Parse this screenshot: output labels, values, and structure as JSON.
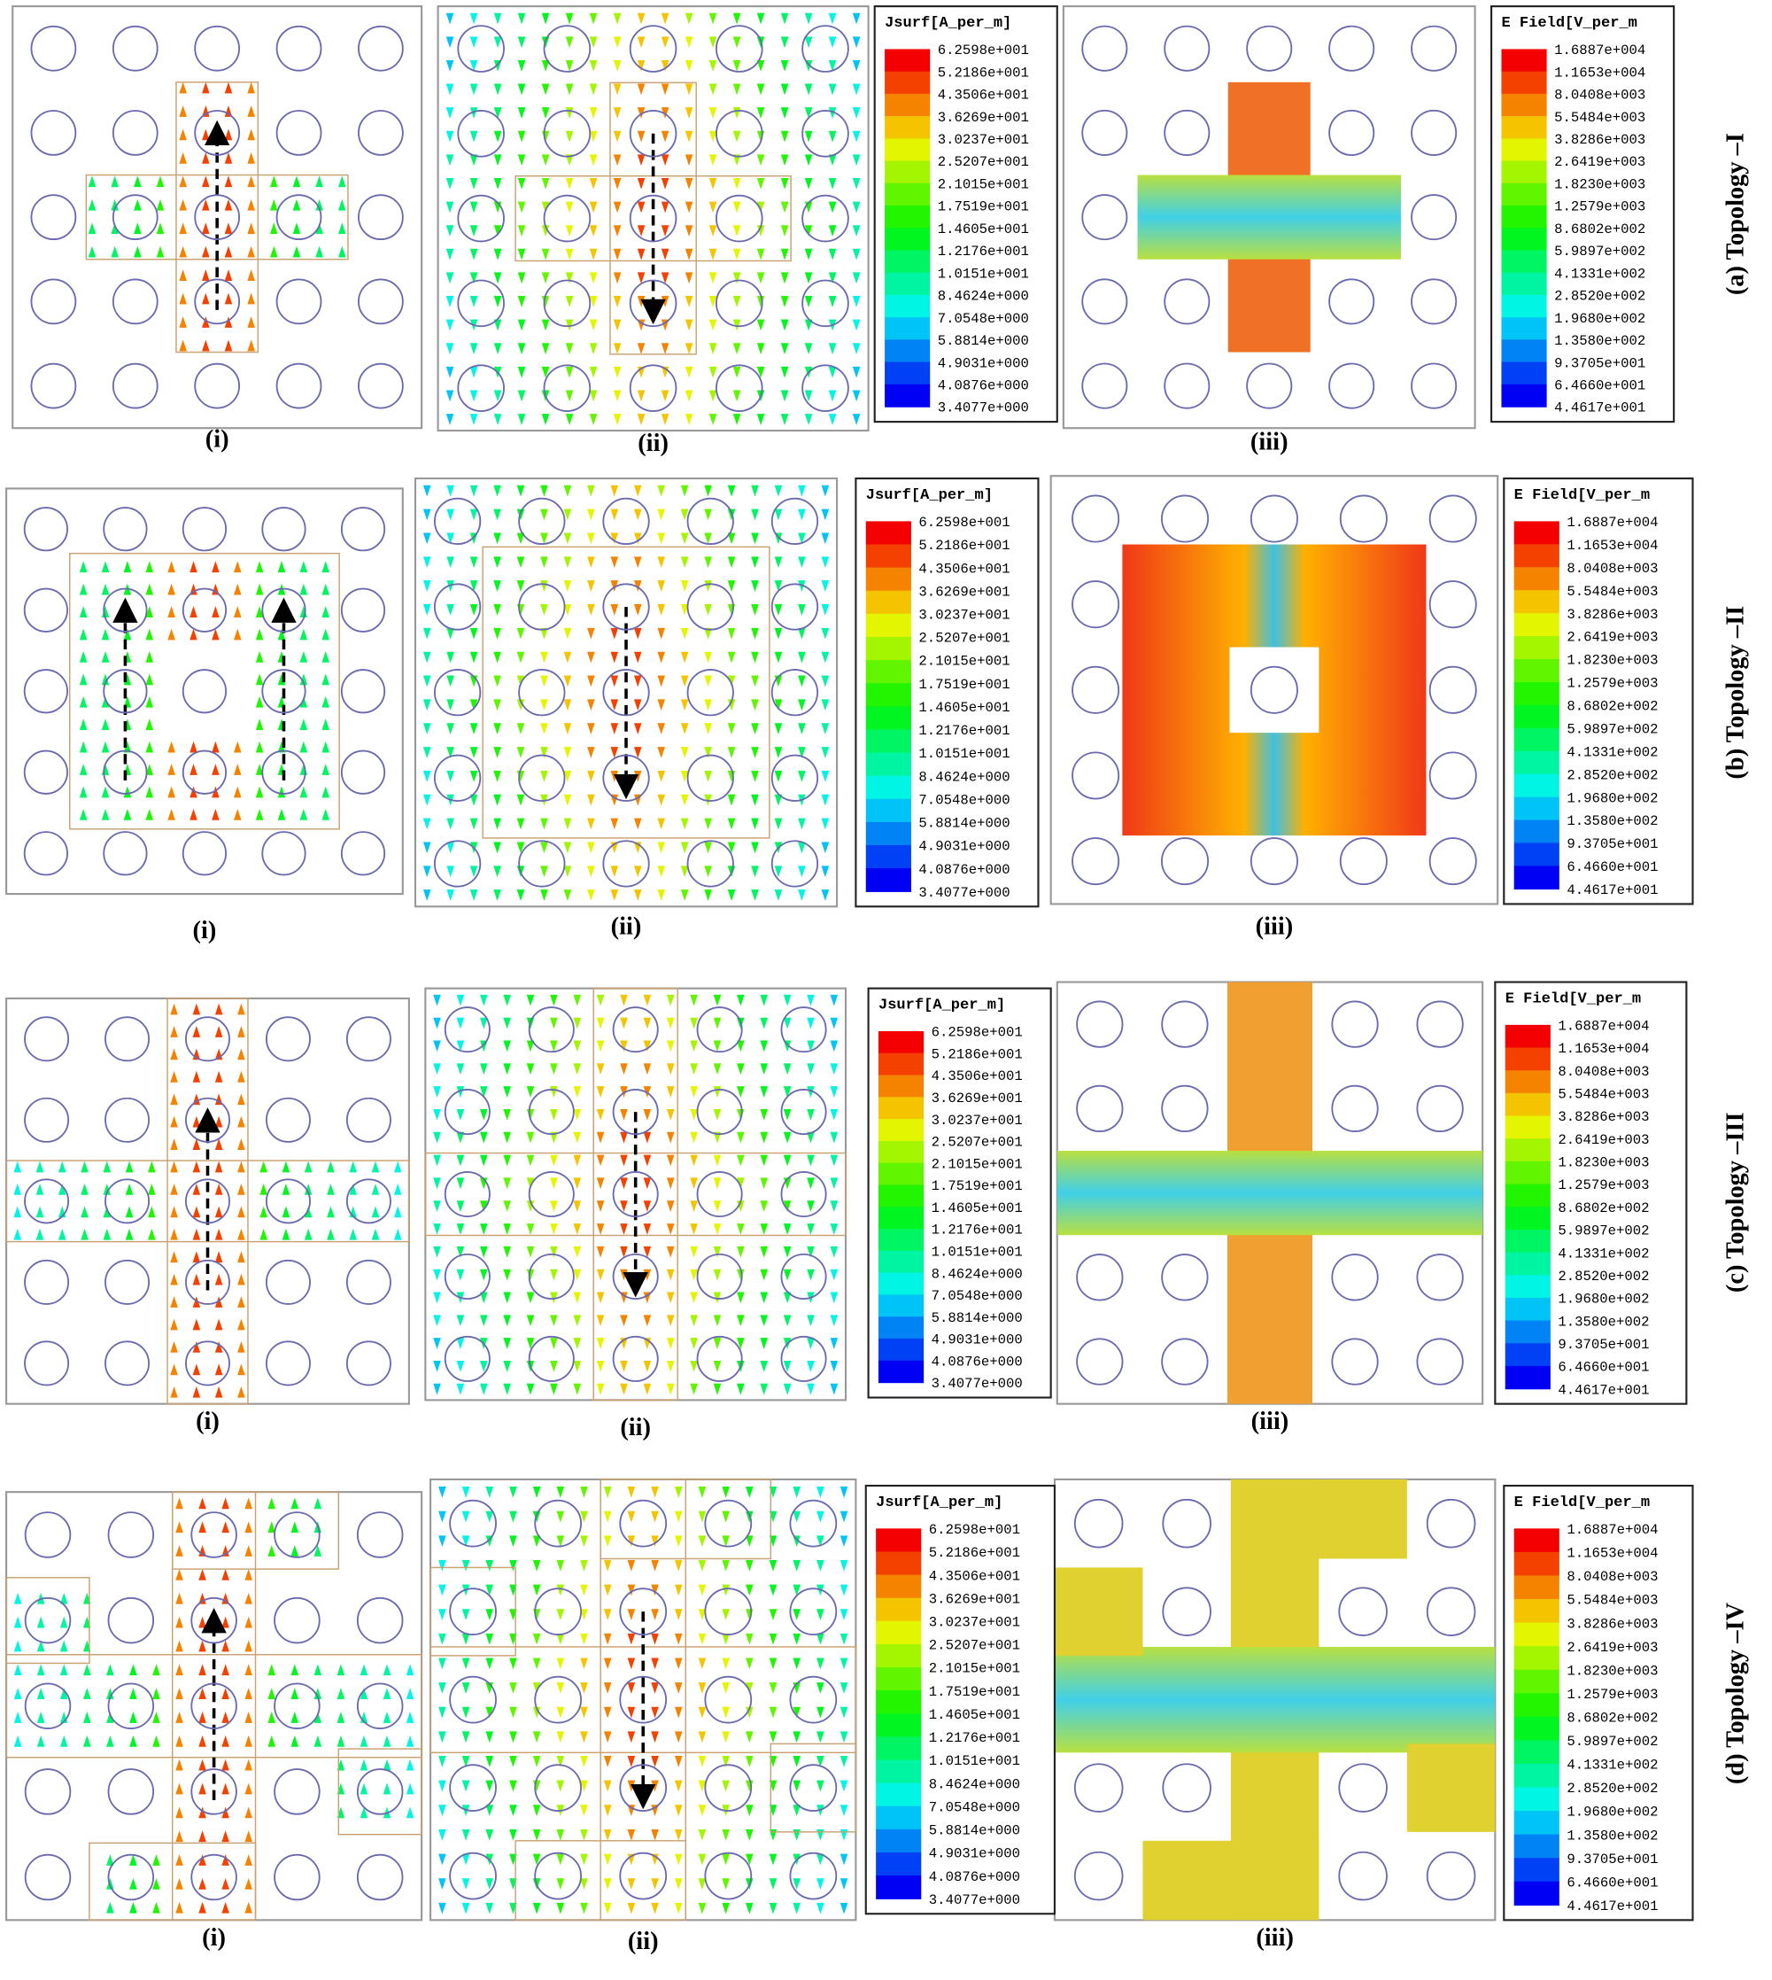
{
  "legends": {
    "jsurf": {
      "title": "Jsurf[A_per_m]",
      "labels": [
        "6.2598e+001",
        "5.2186e+001",
        "4.3506e+001",
        "3.6269e+001",
        "3.0237e+001",
        "2.5207e+001",
        "2.1015e+001",
        "1.7519e+001",
        "1.4605e+001",
        "1.2176e+001",
        "1.0151e+001",
        "8.4624e+000",
        "7.0548e+000",
        "5.8814e+000",
        "4.9031e+000",
        "4.0876e+000",
        "3.4077e+000"
      ]
    },
    "efield": {
      "title": "E Field[V_per_m",
      "labels": [
        "1.6887e+004",
        "1.1653e+004",
        "8.0408e+003",
        "5.5484e+003",
        "3.8286e+003",
        "2.6419e+003",
        "1.8230e+003",
        "1.2579e+003",
        "8.6802e+002",
        "5.9897e+002",
        "4.1331e+002",
        "2.8520e+002",
        "1.9680e+002",
        "1.3580e+002",
        "9.3705e+001",
        "6.4660e+001",
        "4.4617e+001"
      ]
    }
  },
  "rows": [
    {
      "title": "(a) Topology –I",
      "panel_labels": [
        "(i)",
        "(ii)",
        "(iii)"
      ]
    },
    {
      "title": "(b) Topology –II",
      "panel_labels": [
        "(i)",
        "(ii)",
        "(iii)"
      ]
    },
    {
      "title": "(c) Topology –III",
      "panel_labels": [
        "(i)",
        "(ii)",
        "(iii)"
      ]
    },
    {
      "title": "(d) Topology –IV",
      "panel_labels": [
        "(i)",
        "(ii)",
        "(iii)"
      ]
    }
  ]
}
